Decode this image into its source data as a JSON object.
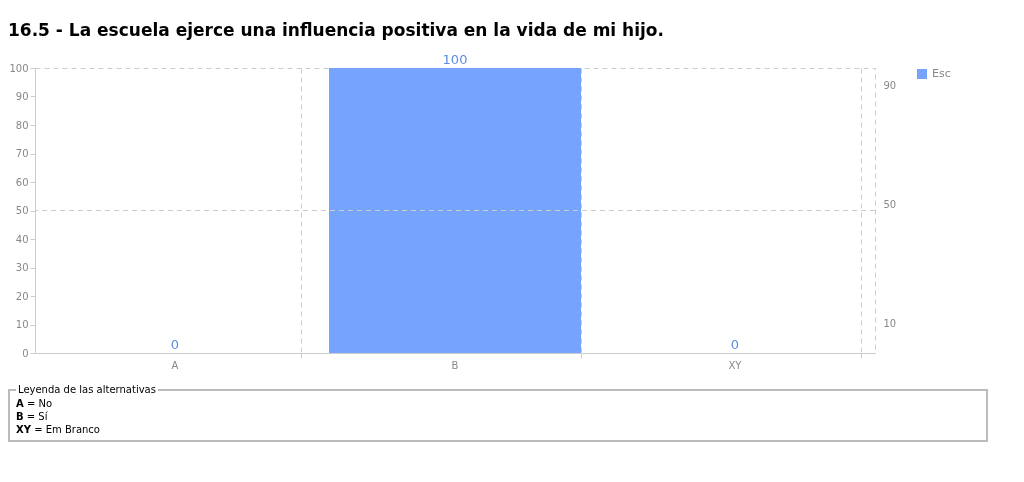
{
  "chart_data": {
    "type": "bar",
    "title": "16.5 - La escuela ejerce una influencia positiva en la vida de mi hijo.",
    "categories": [
      "A",
      "B",
      "XY"
    ],
    "series": [
      {
        "name": "Esc",
        "color": "#76a3fb",
        "values": [
          0,
          100,
          0
        ]
      }
    ],
    "ylim": [
      0,
      100
    ],
    "yticks": [
      0,
      10,
      20,
      30,
      40,
      50,
      60,
      70,
      80,
      90,
      100
    ],
    "y2lim": [
      0,
      96
    ],
    "y2ticks": [
      10,
      50,
      90
    ],
    "grid": "x",
    "legend": "right",
    "data_labels": true,
    "ref_lines": [
      {
        "axis": "y",
        "value": 50,
        "color": "#cccccc",
        "line_style": "dashed"
      }
    ],
    "annotations": [
      "Leyenda de las alternativas",
      "A = No",
      "B = Sí",
      "XY = Em Branco"
    ]
  }
}
